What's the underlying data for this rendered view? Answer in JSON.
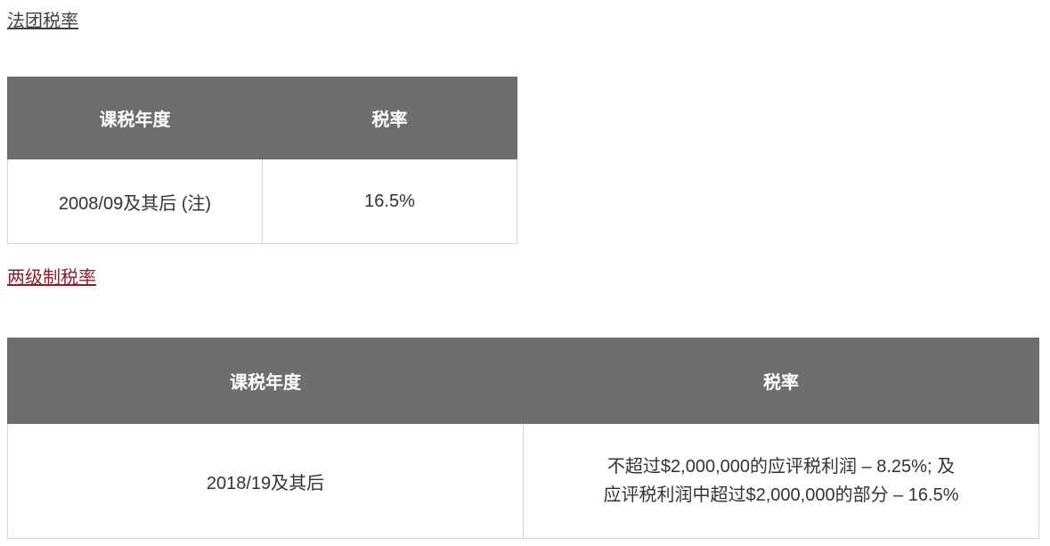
{
  "colors": {
    "table_header_bg": "#6e6e6e",
    "table_header_text": "#ffffff",
    "table_border": "#d6d6d6",
    "body_text": "#333333",
    "corporation_link_color": "#404040",
    "two_tier_link_color": "#8e1d2c",
    "page_background": "#ffffff"
  },
  "sections": [
    {
      "heading": "法团税率",
      "table": {
        "col_year": "课税年度",
        "col_rate": "税率",
        "row_year": "2008/09及其后 (注)",
        "row_rate": "16.5%"
      }
    },
    {
      "heading": "两级制税率",
      "table": {
        "col_year": "课税年度",
        "col_rate": "税率",
        "row_year": "2018/19及其后",
        "row_rate_line1": "不超过$2,000,000的应评税利润 – 8.25%; 及",
        "row_rate_line2": "应评税利润中超过$2,000,000的部分 – 16.5%"
      }
    }
  ]
}
